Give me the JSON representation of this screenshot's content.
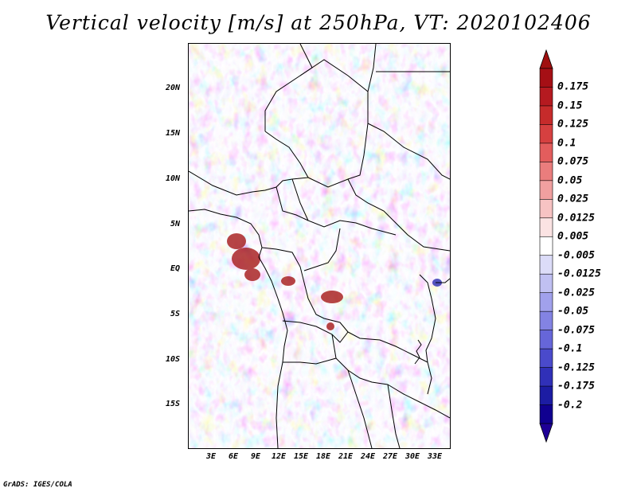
{
  "title": "Vertical velocity [m/s] at 250hPa, VT: 2020102406",
  "credit": "GrADS: IGES/COLA",
  "lat_ticks": [
    "20N",
    "15N",
    "10N",
    "5N",
    "EQ",
    "5S",
    "10S",
    "15S"
  ],
  "lon_ticks": [
    "3E",
    "6E",
    "9E",
    "12E",
    "15E",
    "18E",
    "21E",
    "24E",
    "27E",
    "30E",
    "33E"
  ],
  "colorbar": {
    "labels": [
      "0.175",
      "0.15",
      "0.125",
      "0.1",
      "0.075",
      "0.05",
      "0.025",
      "0.0125",
      "0.005",
      "-0.005",
      "-0.0125",
      "-0.025",
      "-0.05",
      "-0.075",
      "-0.1",
      "-0.125",
      "-0.175",
      "-0.2"
    ],
    "colors": [
      "#a50f15",
      "#b51a20",
      "#c62b2b",
      "#d64040",
      "#e35d5d",
      "#ea7d7d",
      "#f1a0a0",
      "#f7c3c3",
      "#fbe3e3",
      "#ffffff",
      "#dcdcf8",
      "#c0c0f2",
      "#a1a1ec",
      "#8383e3",
      "#6666d9",
      "#4a4acb",
      "#3030b8",
      "#1c1ca3",
      "#100090"
    ],
    "top_arrow_color": "#a01010",
    "bottom_arrow_color": "#1e0096"
  }
}
